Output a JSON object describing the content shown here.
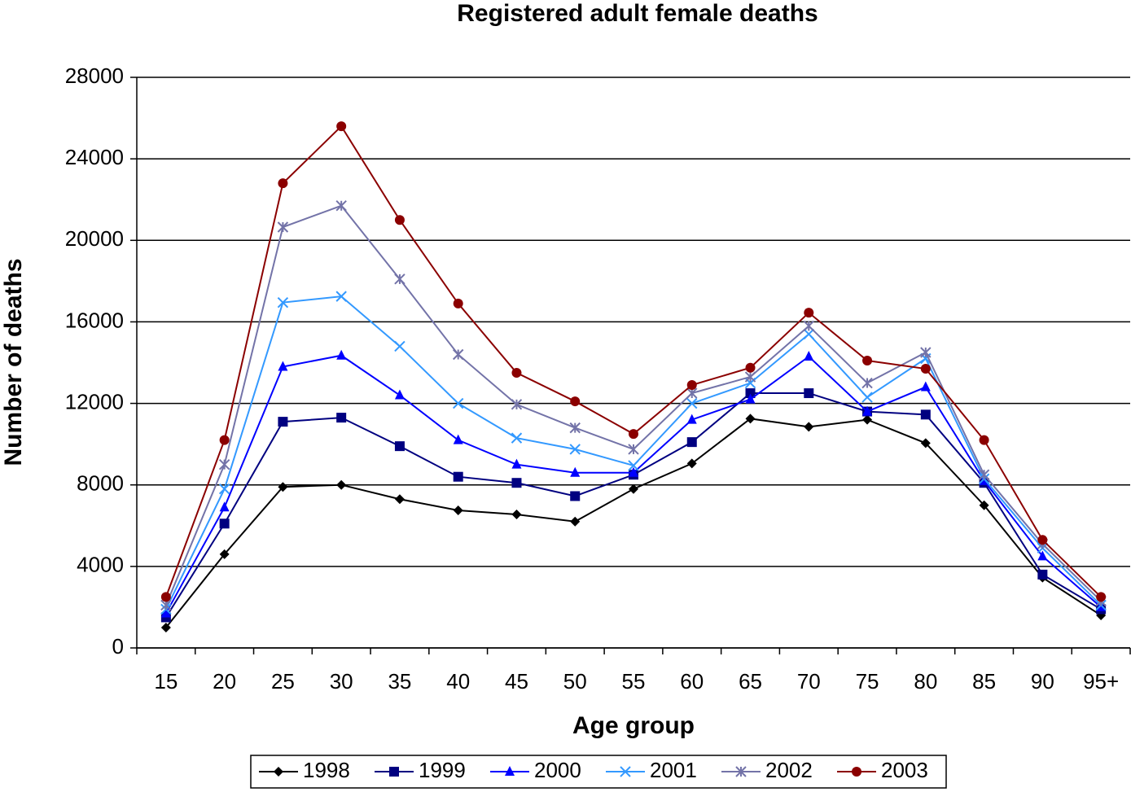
{
  "chart_data": {
    "type": "line",
    "title": "Registered adult female deaths",
    "x_label": "Age group",
    "y_label": "Number of deaths",
    "categories": [
      "15",
      "20",
      "25",
      "30",
      "35",
      "40",
      "45",
      "50",
      "55",
      "60",
      "65",
      "70",
      "75",
      "80",
      "85",
      "90",
      "95+"
    ],
    "ylim": [
      0,
      28000
    ],
    "yticks": [
      0,
      4000,
      8000,
      12000,
      16000,
      20000,
      24000,
      28000
    ],
    "grid": true,
    "legend": "bottom",
    "series": [
      {
        "name": "1998",
        "color": "#000000",
        "marker": "diamond",
        "values": [
          1000,
          4600,
          7900,
          8000,
          7300,
          6750,
          6550,
          6200,
          7800,
          9050,
          11250,
          10850,
          11200,
          10050,
          7000,
          3450,
          1600
        ]
      },
      {
        "name": "1999",
        "color": "#000080",
        "marker": "square",
        "values": [
          1500,
          6100,
          11100,
          11300,
          9900,
          8400,
          8100,
          7450,
          8500,
          10100,
          12500,
          12500,
          11600,
          11450,
          8100,
          3600,
          1900
        ]
      },
      {
        "name": "2000",
        "color": "#0000ff",
        "marker": "triangle",
        "values": [
          1700,
          6900,
          13800,
          14350,
          12400,
          10200,
          9000,
          8600,
          8600,
          11200,
          12200,
          14300,
          11600,
          12800,
          8200,
          4500,
          2000
        ]
      },
      {
        "name": "2001",
        "color": "#3399ff",
        "marker": "x",
        "values": [
          1900,
          7800,
          16950,
          17250,
          14800,
          12000,
          10300,
          9750,
          8950,
          12000,
          13000,
          15400,
          12300,
          14200,
          8300,
          4900,
          2100
        ]
      },
      {
        "name": "2002",
        "color": "#7373a8",
        "marker": "star",
        "values": [
          2100,
          9000,
          20650,
          21700,
          18100,
          14400,
          11950,
          10800,
          9750,
          12500,
          13300,
          15800,
          13000,
          14500,
          8500,
          5100,
          2300
        ]
      },
      {
        "name": "2003",
        "color": "#8b0000",
        "marker": "circle",
        "values": [
          2500,
          10200,
          22800,
          25600,
          21000,
          16900,
          13500,
          12100,
          10500,
          12900,
          13750,
          16450,
          14100,
          13700,
          10200,
          5300,
          2500
        ]
      }
    ]
  }
}
